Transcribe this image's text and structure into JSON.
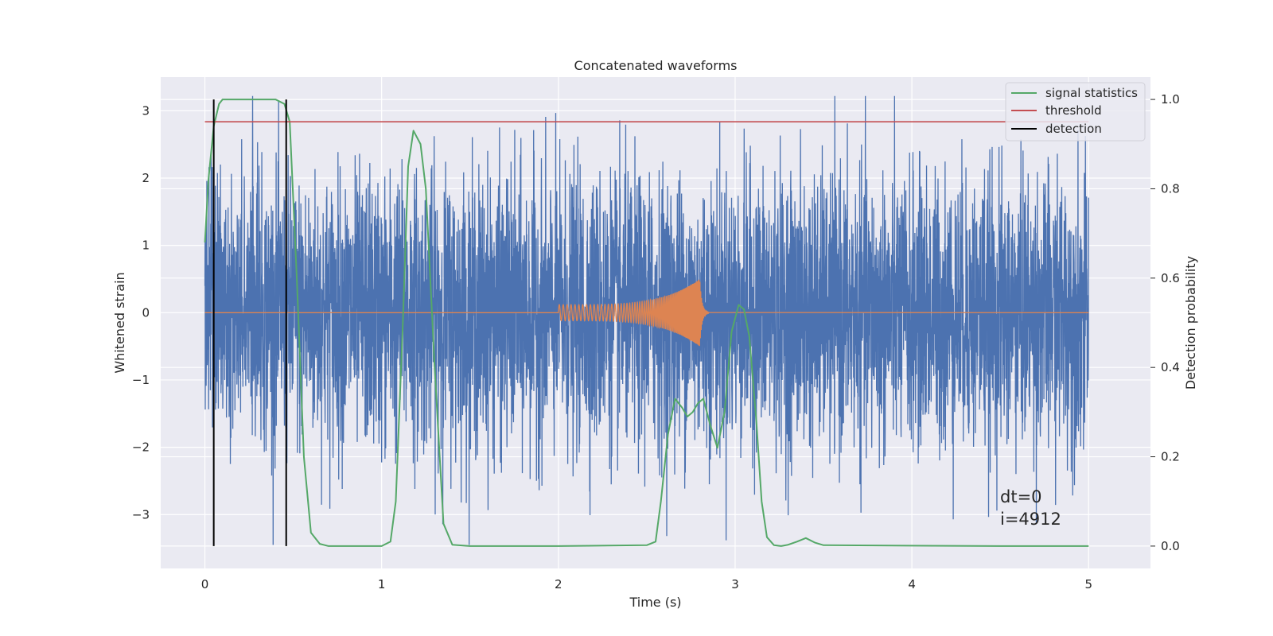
{
  "chart_data": {
    "type": "line",
    "title": "Concatenated waveforms",
    "xlabel": "Time (s)",
    "ylabel_left": "Whitened strain",
    "ylabel_right": "Detection probability",
    "xlim": [
      -0.25,
      5.35
    ],
    "ylim_left": [
      -3.8,
      3.5
    ],
    "ylim_right": [
      -0.05,
      1.05
    ],
    "x_ticks": [
      0,
      1,
      2,
      3,
      4,
      5
    ],
    "x_tick_labels": [
      "0",
      "1",
      "2",
      "3",
      "4",
      "5"
    ],
    "y_left_ticks": [
      -3,
      -2,
      -1,
      0,
      1,
      2,
      3
    ],
    "y_left_tick_labels": [
      "−3",
      "−2",
      "−1",
      "0",
      "1",
      "2",
      "3"
    ],
    "y_right_ticks": [
      0.0,
      0.2,
      0.4,
      0.6,
      0.8,
      1.0
    ],
    "y_right_tick_labels": [
      "0.0",
      "0.2",
      "0.4",
      "0.6",
      "0.8",
      "1.0"
    ],
    "grid": true,
    "legend_position": "top-right",
    "legend": [
      "signal statistics",
      "threshold",
      "detection"
    ],
    "colors": {
      "background": "#eaeaf2",
      "grid": "#ffffff",
      "noise": "#4c72b0",
      "template": "#dd8452",
      "statistic": "#55a868",
      "threshold": "#c44e52",
      "detection": "#000000"
    },
    "series": [
      {
        "name": "signal statistics",
        "axis": "right",
        "x": [
          0.0,
          0.02,
          0.05,
          0.08,
          0.1,
          0.15,
          0.2,
          0.3,
          0.4,
          0.45,
          0.48,
          0.52,
          0.56,
          0.6,
          0.65,
          0.7,
          0.8,
          1.0,
          1.05,
          1.08,
          1.12,
          1.15,
          1.18,
          1.22,
          1.25,
          1.3,
          1.35,
          1.4,
          1.5,
          2.0,
          2.5,
          2.55,
          2.58,
          2.62,
          2.66,
          2.7,
          2.73,
          2.76,
          2.79,
          2.82,
          2.86,
          2.9,
          2.94,
          2.98,
          3.02,
          3.05,
          3.08,
          3.12,
          3.15,
          3.18,
          3.22,
          3.26,
          3.3,
          3.35,
          3.4,
          3.45,
          3.5,
          4.0,
          4.5,
          5.0
        ],
        "values": [
          0.68,
          0.82,
          0.94,
          0.99,
          1.0,
          1.0,
          1.0,
          1.0,
          1.0,
          0.99,
          0.95,
          0.6,
          0.2,
          0.03,
          0.005,
          0.0,
          0.0,
          0.0,
          0.01,
          0.1,
          0.5,
          0.85,
          0.93,
          0.9,
          0.8,
          0.4,
          0.05,
          0.003,
          0.0,
          0.0,
          0.002,
          0.01,
          0.1,
          0.25,
          0.33,
          0.31,
          0.29,
          0.3,
          0.32,
          0.33,
          0.27,
          0.22,
          0.3,
          0.48,
          0.54,
          0.53,
          0.47,
          0.28,
          0.1,
          0.02,
          0.002,
          0.0,
          0.003,
          0.01,
          0.018,
          0.008,
          0.002,
          0.001,
          0.0,
          0.0
        ]
      },
      {
        "name": "threshold",
        "axis": "right",
        "x": [
          0.0,
          5.0
        ],
        "values": [
          0.95,
          0.95
        ]
      },
      {
        "name": "detection",
        "axis": "right",
        "type": "vlines",
        "x": [
          0.05,
          0.46
        ],
        "y_range": [
          0.0,
          1.0
        ]
      },
      {
        "axis": "left",
        "type": "noise",
        "x_range": [
          0.0,
          5.0
        ],
        "approx_std": 1.0,
        "min": -3.45,
        "max": 3.22
      },
      {
        "axis": "left",
        "type": "chirp",
        "x_range": [
          2.0,
          2.8
        ],
        "start_amplitude": 0.12,
        "peak_amplitude": 0.5,
        "ringdown_end": 2.85
      }
    ],
    "annotations": [
      "dt=0",
      "i=4912"
    ]
  }
}
